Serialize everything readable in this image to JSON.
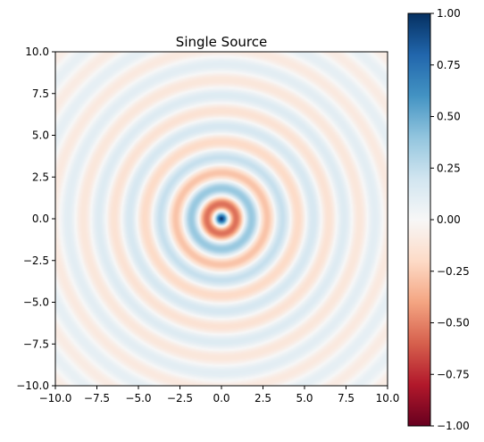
{
  "chart_data": {
    "type": "heatmap",
    "title": "Single Source",
    "xlabel": "",
    "ylabel": "",
    "xlim": [
      -10,
      10
    ],
    "ylim": [
      -10,
      10
    ],
    "x_ticks": [
      -10,
      -7.5,
      -5,
      -2.5,
      0,
      2.5,
      5,
      7.5,
      10
    ],
    "y_ticks": [
      -10,
      -7.5,
      -5,
      -2.5,
      0,
      2.5,
      5,
      7.5,
      10
    ],
    "x_tick_labels": [
      "−10.0",
      "−7.5",
      "−5.0",
      "−2.5",
      "0.0",
      "2.5",
      "5.0",
      "7.5",
      "10.0"
    ],
    "y_tick_labels": [
      "10.0",
      "7.5",
      "5.0",
      "2.5",
      "0.0",
      "−2.5",
      "−5.0",
      "−7.5",
      "−10.0"
    ],
    "source": {
      "x": 0,
      "y": 0
    },
    "field": "concentric rings radiating from a single source at the origin; value is 1.0 at the center and ring amplitude decays with radius",
    "ring_wavelength": 1.85,
    "colormap": "RdBu",
    "colorbar": {
      "range": [
        -1,
        1
      ],
      "ticks": [
        1,
        0.75,
        0.5,
        0.25,
        0,
        -0.25,
        -0.5,
        -0.75,
        -1
      ],
      "tick_labels": [
        "1.00",
        "0.75",
        "0.50",
        "0.25",
        "0.00",
        "−0.25",
        "−0.50",
        "−0.75",
        "−1.00"
      ]
    },
    "grid": false,
    "legend": "none"
  },
  "colors": {
    "cmap_stops": [
      "#67001f",
      "#b2182b",
      "#d6604d",
      "#f4a582",
      "#fddbc7",
      "#f7f7f7",
      "#d1e5f0",
      "#92c5de",
      "#4393c3",
      "#2166ac",
      "#053061"
    ]
  }
}
